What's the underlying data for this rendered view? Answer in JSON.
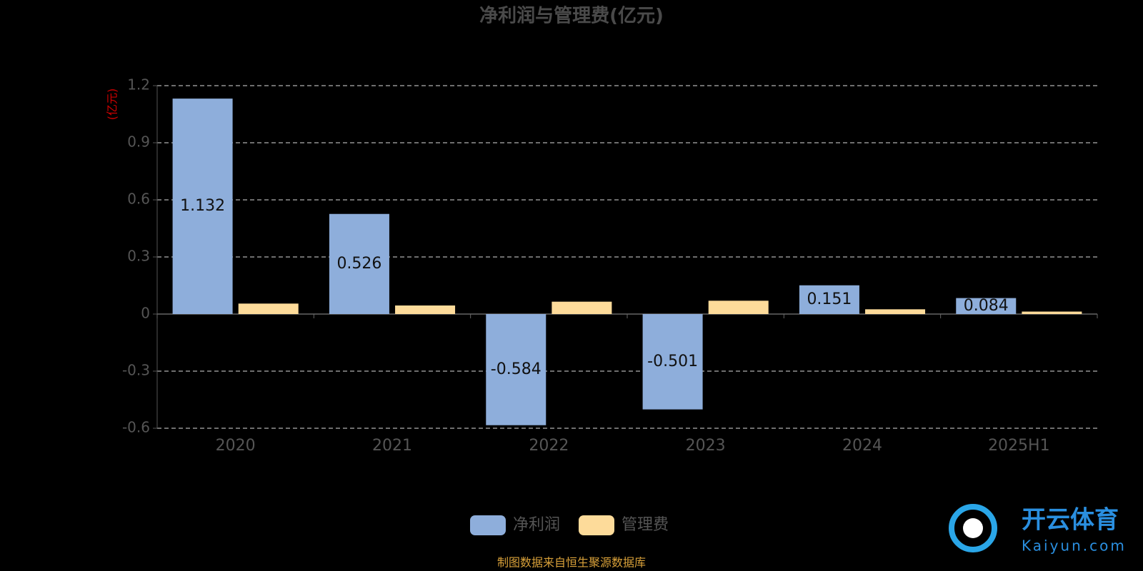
{
  "chart_data": {
    "type": "bar",
    "title": "净利润与管理费(亿元)",
    "y_label": "(亿元)",
    "categories": [
      "2020",
      "2021",
      "2022",
      "2023",
      "2024",
      "2025H1"
    ],
    "series": [
      {
        "name": "净利润",
        "color": "#8eaedb",
        "values": [
          1.132,
          0.526,
          -0.584,
          -0.501,
          0.151,
          0.084
        ],
        "show_labels": true
      },
      {
        "name": "管理费",
        "color": "#fddb9a",
        "values": [
          0.055,
          0.045,
          0.065,
          0.07,
          0.025,
          0.013
        ],
        "show_labels": false
      }
    ],
    "ylim": [
      -0.6,
      1.2
    ],
    "yticks": [
      -0.6,
      -0.3,
      0,
      0.3,
      0.6,
      0.9,
      1.2
    ],
    "grid": true,
    "source": "制图数据来自恒生聚源数据库"
  },
  "watermark": {
    "brand": "开云体育",
    "site": "Kaiyun.com"
  }
}
